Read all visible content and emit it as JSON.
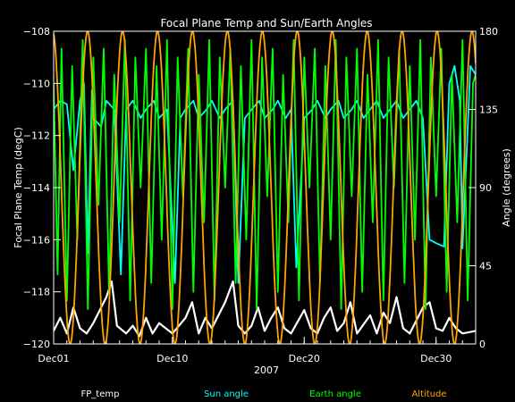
{
  "chart_data": {
    "type": "line",
    "title": "Focal Plane Temp and Sun/Earth Angles",
    "xlabel": "2007",
    "ylabel_left": "Focal Plane Temp (degC)",
    "ylabel_right": "Angle (degrees)",
    "xlim": [
      1,
      33
    ],
    "ylim_left": [
      -120,
      -108
    ],
    "ylim_right": [
      0,
      180
    ],
    "x_ticks": [
      {
        "x": 1,
        "label": "Dec01"
      },
      {
        "x": 10,
        "label": "Dec10"
      },
      {
        "x": 20,
        "label": "Dec20"
      },
      {
        "x": 30,
        "label": "Dec30"
      }
    ],
    "y_ticks_left": [
      -120,
      -118,
      -116,
      -114,
      -112,
      -110,
      -108
    ],
    "y_ticks_right": [
      0,
      45,
      90,
      135,
      180
    ],
    "series": [
      {
        "name": "FP_temp",
        "color": "#ffffff",
        "axis": "left",
        "points": [
          [
            1,
            -119.5
          ],
          [
            1.5,
            -119.0
          ],
          [
            2,
            -119.6
          ],
          [
            2.5,
            -118.6
          ],
          [
            3,
            -119.4
          ],
          [
            3.5,
            -119.6
          ],
          [
            4,
            -119.2
          ],
          [
            5,
            -118.2
          ],
          [
            5.4,
            -117.6
          ],
          [
            5.8,
            -119.3
          ],
          [
            6.5,
            -119.6
          ],
          [
            7,
            -119.3
          ],
          [
            7.5,
            -119.7
          ],
          [
            8,
            -119.0
          ],
          [
            8.5,
            -119.6
          ],
          [
            9,
            -119.2
          ],
          [
            10,
            -119.6
          ],
          [
            11,
            -119.0
          ],
          [
            11.5,
            -118.4
          ],
          [
            12,
            -119.6
          ],
          [
            12.5,
            -119.0
          ],
          [
            13,
            -119.4
          ],
          [
            14,
            -118.4
          ],
          [
            14.6,
            -117.6
          ],
          [
            15,
            -119.3
          ],
          [
            15.5,
            -119.6
          ],
          [
            16,
            -119.3
          ],
          [
            16.5,
            -118.6
          ],
          [
            17,
            -119.5
          ],
          [
            17.5,
            -119.0
          ],
          [
            18,
            -118.6
          ],
          [
            18.5,
            -119.4
          ],
          [
            19,
            -119.6
          ],
          [
            20,
            -118.7
          ],
          [
            20.5,
            -119.4
          ],
          [
            21,
            -119.6
          ],
          [
            21.5,
            -119.0
          ],
          [
            22,
            -118.6
          ],
          [
            22.5,
            -119.5
          ],
          [
            23,
            -119.2
          ],
          [
            23.5,
            -118.4
          ],
          [
            24,
            -119.6
          ],
          [
            25,
            -118.9
          ],
          [
            25.5,
            -119.6
          ],
          [
            26,
            -118.8
          ],
          [
            26.5,
            -119.2
          ],
          [
            27,
            -118.2
          ],
          [
            27.5,
            -119.4
          ],
          [
            28,
            -119.6
          ],
          [
            29,
            -118.6
          ],
          [
            29.5,
            -118.4
          ],
          [
            30,
            -119.4
          ],
          [
            30.5,
            -119.5
          ],
          [
            31,
            -119.0
          ],
          [
            31.5,
            -119.4
          ],
          [
            32,
            -119.6
          ],
          [
            33,
            -119.5
          ]
        ]
      },
      {
        "name": "Sun angle",
        "color": "#00ffff",
        "axis": "right",
        "points": [
          [
            1,
            135
          ],
          [
            1.5,
            140
          ],
          [
            2,
            138
          ],
          [
            2.5,
            100
          ],
          [
            3,
            140
          ],
          [
            3.3,
            150
          ],
          [
            3.6,
            52
          ],
          [
            3.9,
            146
          ],
          [
            4,
            130
          ],
          [
            4.6,
            125
          ],
          [
            5,
            140
          ],
          [
            5.6,
            135
          ],
          [
            6.1,
            40
          ],
          [
            6.5,
            135
          ],
          [
            7,
            140
          ],
          [
            7.6,
            130
          ],
          [
            8,
            135
          ],
          [
            8.6,
            140
          ],
          [
            9,
            130
          ],
          [
            9.6,
            135
          ],
          [
            10.2,
            35
          ],
          [
            10.6,
            130
          ],
          [
            11,
            135
          ],
          [
            11.6,
            140
          ],
          [
            12,
            130
          ],
          [
            12.6,
            135
          ],
          [
            13,
            140
          ],
          [
            13.6,
            130
          ],
          [
            14,
            135
          ],
          [
            14.6,
            140
          ],
          [
            15,
            35
          ],
          [
            15.5,
            130
          ],
          [
            16,
            135
          ],
          [
            16.6,
            140
          ],
          [
            17,
            130
          ],
          [
            17.6,
            135
          ],
          [
            18,
            140
          ],
          [
            18.6,
            130
          ],
          [
            19,
            135
          ],
          [
            19.4,
            44
          ],
          [
            20,
            130
          ],
          [
            20.6,
            135
          ],
          [
            21,
            140
          ],
          [
            21.6,
            130
          ],
          [
            22,
            135
          ],
          [
            22.6,
            140
          ],
          [
            23,
            130
          ],
          [
            23.6,
            135
          ],
          [
            24,
            140
          ],
          [
            24.5,
            130
          ],
          [
            25,
            135
          ],
          [
            25.5,
            140
          ],
          [
            26,
            130
          ],
          [
            26.5,
            135
          ],
          [
            27,
            140
          ],
          [
            27.5,
            130
          ],
          [
            28,
            135
          ],
          [
            28.5,
            140
          ],
          [
            29,
            130
          ],
          [
            29.5,
            60
          ],
          [
            30,
            58
          ],
          [
            30.6,
            56
          ],
          [
            31,
            150
          ],
          [
            31.4,
            160
          ],
          [
            31.8,
            140
          ],
          [
            32,
            55
          ],
          [
            32.6,
            160
          ],
          [
            33,
            155
          ]
        ]
      },
      {
        "name": "Earth angle",
        "color": "#00ff00",
        "axis": "right",
        "points": [
          [
            1,
            150
          ],
          [
            1.3,
            40
          ],
          [
            1.6,
            170
          ],
          [
            2,
            25
          ],
          [
            2.4,
            160
          ],
          [
            2.8,
            60
          ],
          [
            3.2,
            175
          ],
          [
            3.6,
            20
          ],
          [
            4,
            165
          ],
          [
            4.4,
            80
          ],
          [
            4.8,
            170
          ],
          [
            5.2,
            30
          ],
          [
            5.6,
            155
          ],
          [
            6,
            70
          ],
          [
            6.4,
            175
          ],
          [
            6.8,
            25
          ],
          [
            7.2,
            165
          ],
          [
            7.6,
            90
          ],
          [
            8,
            170
          ],
          [
            8.4,
            35
          ],
          [
            8.8,
            160
          ],
          [
            9.2,
            60
          ],
          [
            9.6,
            175
          ],
          [
            10,
            20
          ],
          [
            10.4,
            165
          ],
          [
            10.8,
            85
          ],
          [
            11.2,
            170
          ],
          [
            11.6,
            30
          ],
          [
            12,
            155
          ],
          [
            12.4,
            70
          ],
          [
            12.8,
            175
          ],
          [
            13.2,
            25
          ],
          [
            13.6,
            165
          ],
          [
            14,
            90
          ],
          [
            14.4,
            170
          ],
          [
            14.8,
            35
          ],
          [
            15.2,
            160
          ],
          [
            15.6,
            60
          ],
          [
            16,
            175
          ],
          [
            16.4,
            20
          ],
          [
            16.8,
            165
          ],
          [
            17.2,
            85
          ],
          [
            17.6,
            170
          ],
          [
            18,
            30
          ],
          [
            18.4,
            155
          ],
          [
            18.8,
            70
          ],
          [
            19.2,
            175
          ],
          [
            19.6,
            25
          ],
          [
            20,
            165
          ],
          [
            20.4,
            90
          ],
          [
            20.8,
            170
          ],
          [
            21.2,
            35
          ],
          [
            21.6,
            160
          ],
          [
            22,
            60
          ],
          [
            22.4,
            175
          ],
          [
            22.8,
            20
          ],
          [
            23.2,
            165
          ],
          [
            23.6,
            85
          ],
          [
            24,
            170
          ],
          [
            24.4,
            30
          ],
          [
            24.8,
            155
          ],
          [
            25.2,
            70
          ],
          [
            25.6,
            175
          ],
          [
            26,
            25
          ],
          [
            26.4,
            165
          ],
          [
            26.8,
            90
          ],
          [
            27.2,
            170
          ],
          [
            27.6,
            35
          ],
          [
            28,
            160
          ],
          [
            28.4,
            60
          ],
          [
            28.8,
            175
          ],
          [
            29.2,
            20
          ],
          [
            29.6,
            165
          ],
          [
            30,
            85
          ],
          [
            30.4,
            170
          ],
          [
            30.8,
            30
          ],
          [
            31.2,
            155
          ],
          [
            31.6,
            70
          ],
          [
            32,
            175
          ],
          [
            32.4,
            25
          ],
          [
            32.8,
            150
          ],
          [
            33,
            155
          ]
        ]
      },
      {
        "name": "Altitude",
        "color": "#ffa500",
        "axis": "right",
        "orbit_period_days": 2.65,
        "first_perigee_day": 2.25,
        "min": 0,
        "max": 180
      }
    ],
    "legend_position": "bottom"
  }
}
